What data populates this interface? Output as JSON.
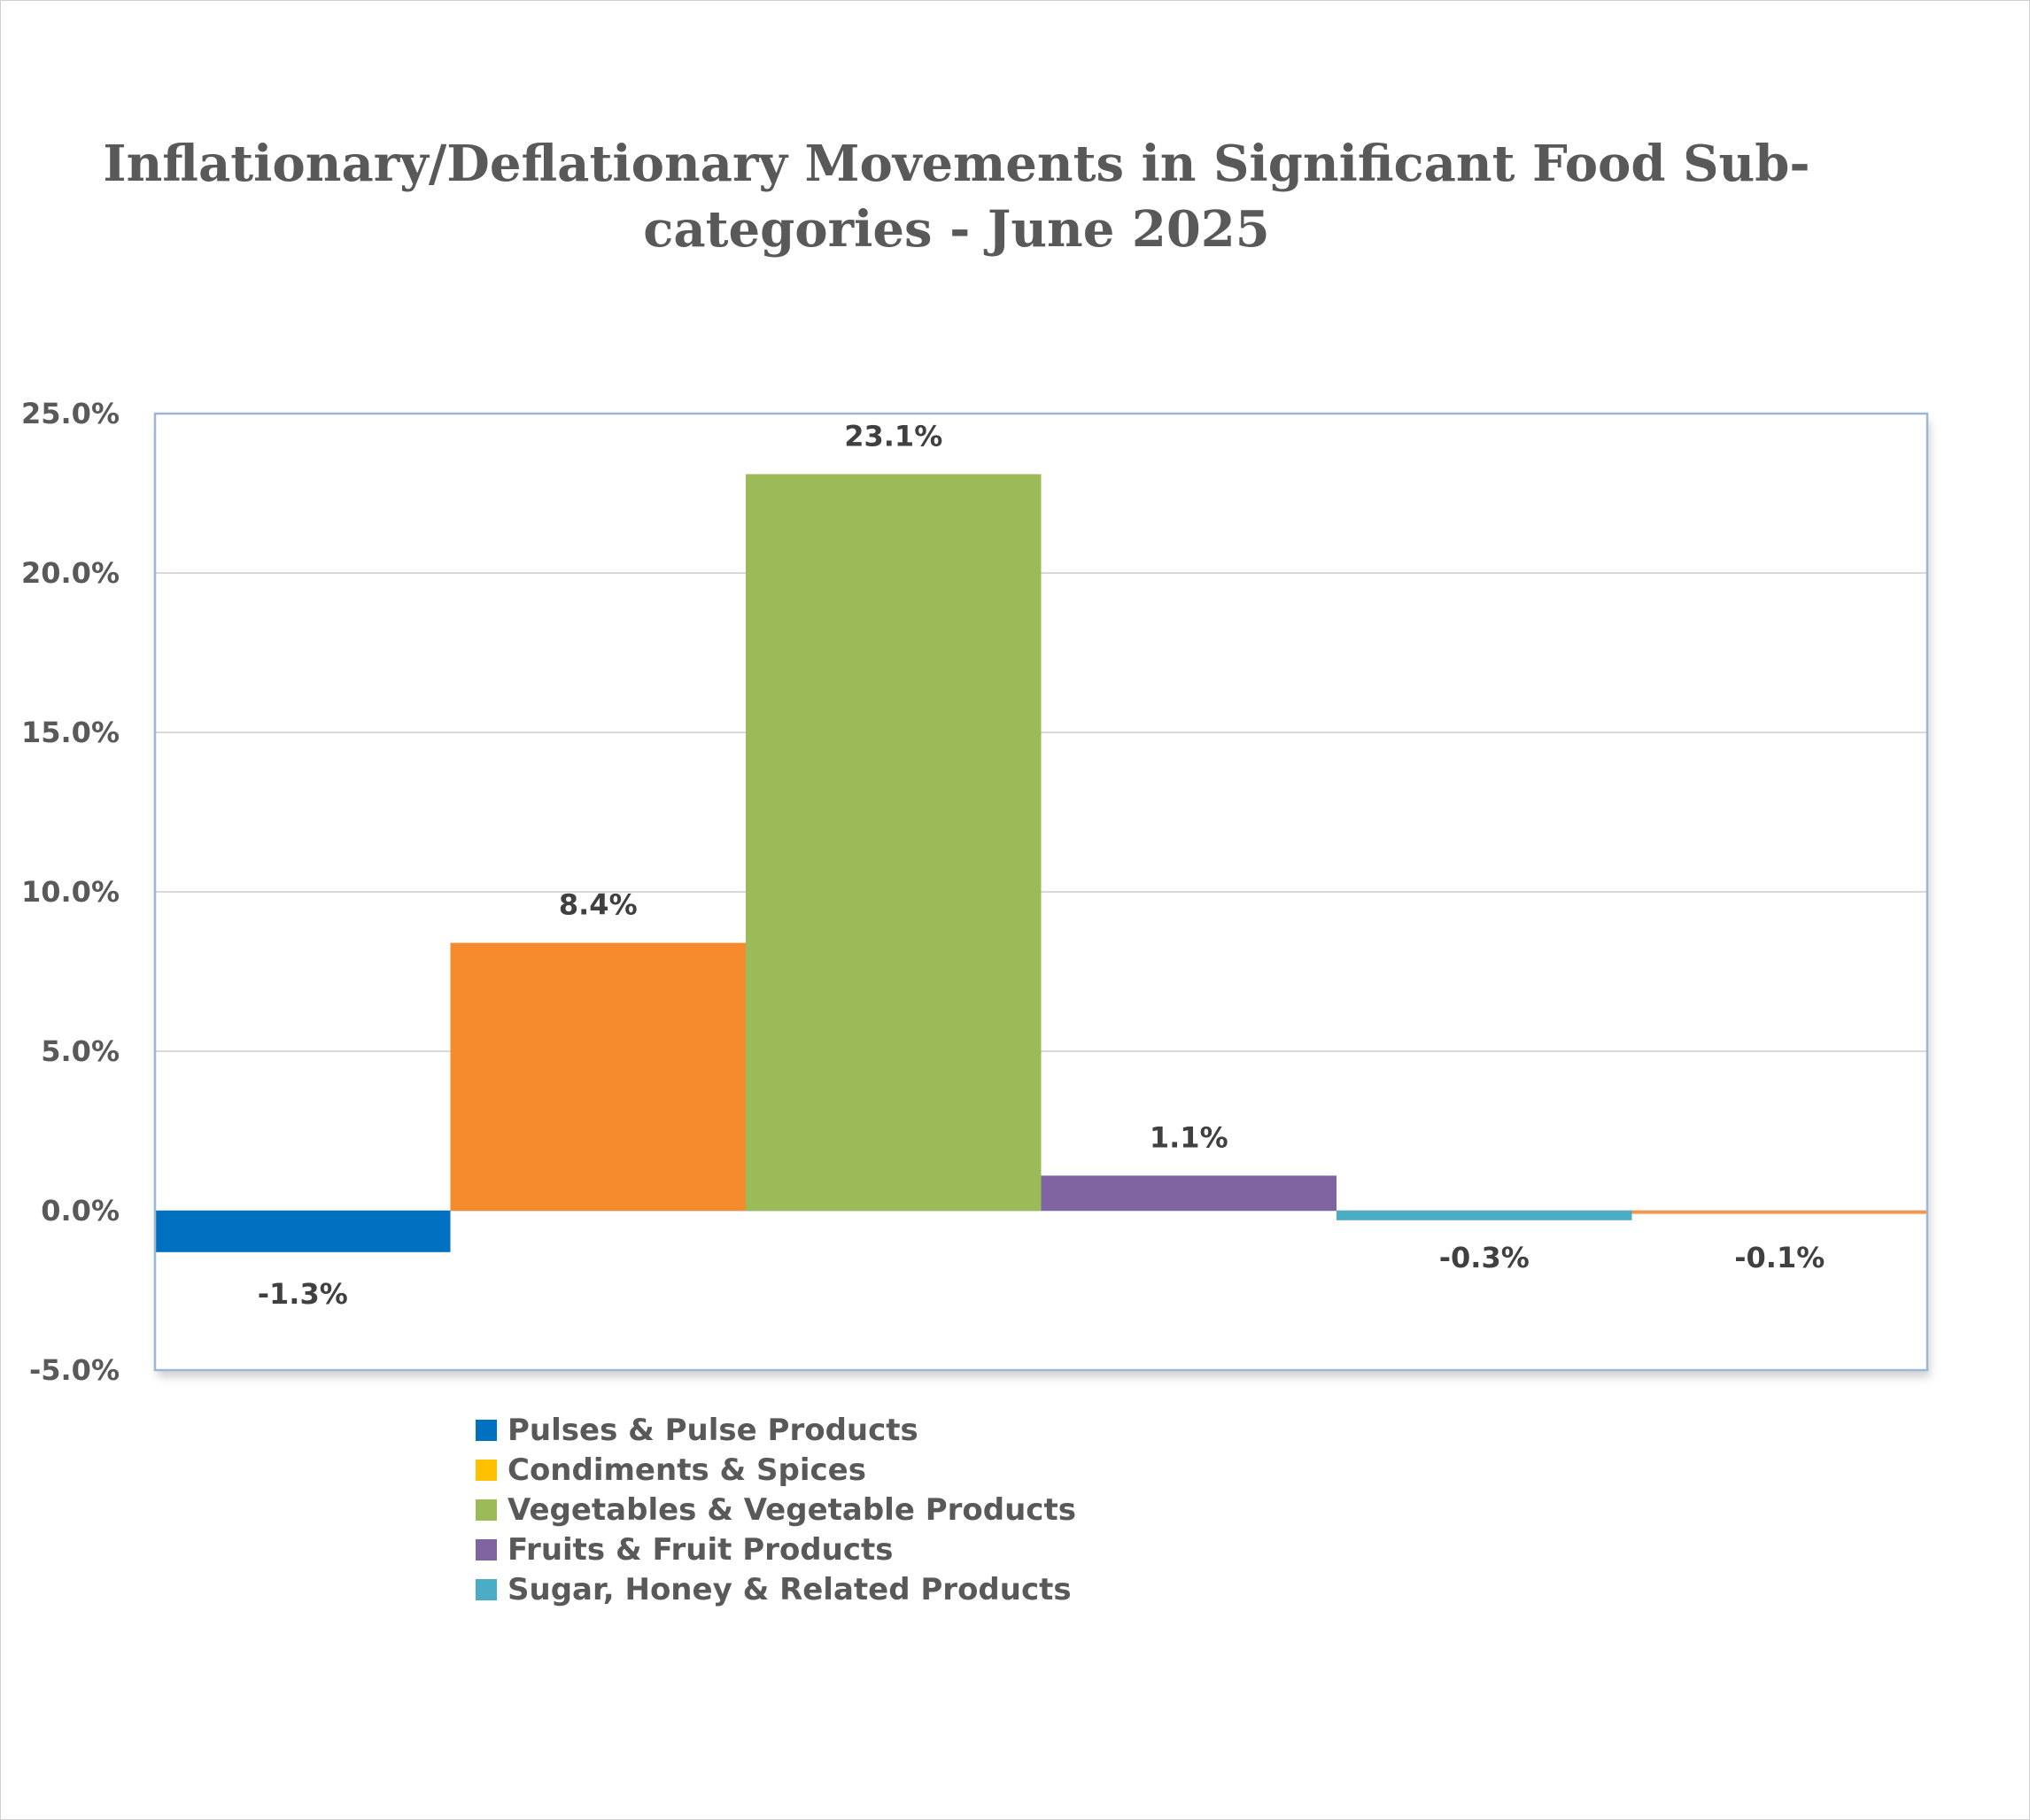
{
  "chart_data": {
    "type": "bar",
    "title_lines": [
      "Inflationary/Deflationary Movements in Significant Food Sub-",
      "categories - June 2025"
    ],
    "categories": [
      "Pulses & Pulse Products",
      "Condiments & Spices",
      "Vegetables & Vegetable Products",
      "Fruits & Fruit Products",
      "Sugar, Honey & Related Products",
      ""
    ],
    "values": [
      -1.3,
      8.4,
      23.1,
      1.1,
      -0.3,
      -0.1
    ],
    "data_labels": [
      "-1.3%",
      "8.4%",
      "23.1%",
      "1.1%",
      "-0.3%",
      "-0.1%"
    ],
    "colors": [
      "#0070c0",
      "#f68b2e",
      "#9bbb59",
      "#8064a2",
      "#4bacc6",
      "#f79646"
    ],
    "ylim": [
      -5,
      25
    ],
    "yticks": [
      25,
      20,
      15,
      10,
      5,
      0,
      -5
    ],
    "ytick_labels": [
      "25.0%",
      "20.0%",
      "15.0%",
      "10.0%",
      "5.0%",
      "0.0%",
      "-5.0%"
    ],
    "grid": true,
    "legend_position": "bottom",
    "legend": [
      {
        "label": "Pulses & Pulse Products",
        "color": "#0070c0"
      },
      {
        "label": "Condiments & Spices",
        "color": "#ffc000"
      },
      {
        "label": "Vegetables & Vegetable Products",
        "color": "#9bbb59"
      },
      {
        "label": "Fruits & Fruit Products",
        "color": "#8064a2"
      },
      {
        "label": "Sugar, Honey & Related Products",
        "color": "#4bacc6"
      }
    ]
  }
}
